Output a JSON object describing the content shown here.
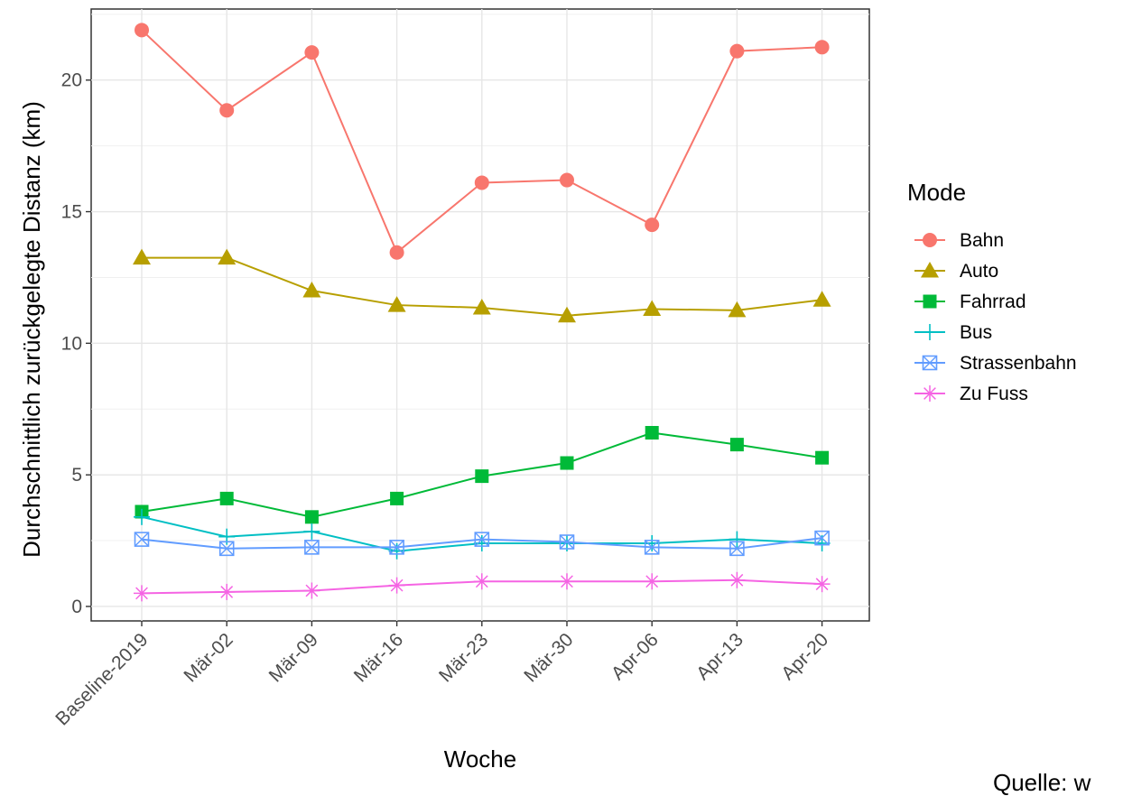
{
  "chart_data": {
    "type": "line",
    "xlabel": "Woche",
    "ylabel": "Durchschnittlich zurückgelegte Distanz (km)",
    "categories": [
      "Baseline-2019",
      "Mär-02",
      "Mär-09",
      "Mär-16",
      "Mär-23",
      "Mär-30",
      "Apr-06",
      "Apr-13",
      "Apr-20"
    ],
    "y_ticks": [
      0,
      5,
      10,
      15,
      20
    ],
    "ylim": [
      -0.55,
      22.7
    ],
    "grid": true,
    "legend": {
      "title": "Mode",
      "placement": "right"
    },
    "series": [
      {
        "name": "Bahn",
        "color": "#f8766d",
        "marker": "circle",
        "values": [
          21.9,
          18.85,
          21.05,
          13.45,
          16.1,
          16.2,
          14.5,
          21.1,
          21.25
        ]
      },
      {
        "name": "Auto",
        "color": "#b79f00",
        "marker": "triangle",
        "values": [
          13.25,
          13.25,
          12.0,
          11.45,
          11.35,
          11.05,
          11.3,
          11.25,
          11.65
        ]
      },
      {
        "name": "Fahrrad",
        "color": "#00ba38",
        "marker": "square",
        "values": [
          3.6,
          4.1,
          3.4,
          4.1,
          4.95,
          5.45,
          6.6,
          6.15,
          5.65
        ]
      },
      {
        "name": "Bus",
        "color": "#00bfc4",
        "marker": "plus",
        "values": [
          3.4,
          2.65,
          2.85,
          2.1,
          2.4,
          2.4,
          2.4,
          2.55,
          2.4
        ]
      },
      {
        "name": "Strassenbahn",
        "color": "#619cff",
        "marker": "boxcross",
        "values": [
          2.55,
          2.2,
          2.25,
          2.25,
          2.55,
          2.45,
          2.25,
          2.2,
          2.6
        ]
      },
      {
        "name": "Zu Fuss",
        "color": "#f564e3",
        "marker": "asterisk",
        "values": [
          0.5,
          0.55,
          0.6,
          0.8,
          0.95,
          0.95,
          0.95,
          1.0,
          0.85
        ]
      }
    ]
  },
  "source_text": "Quelle: w"
}
